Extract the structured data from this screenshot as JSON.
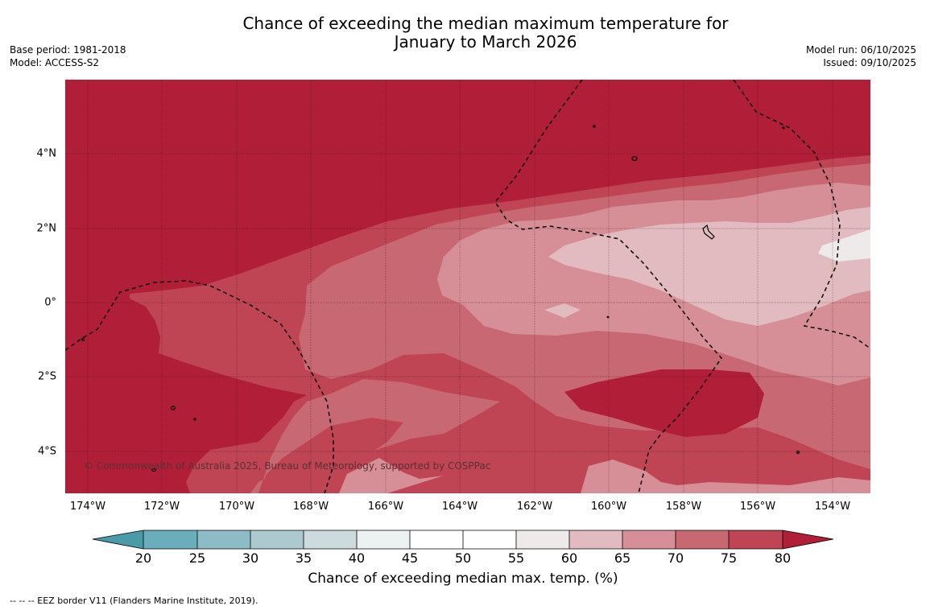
{
  "title": {
    "line1": "Chance of exceeding the median maximum temperature for",
    "line2": "January to March 2026"
  },
  "meta_left": {
    "base_period": "Base period: 1981-2018",
    "model": "Model: ACCESS-S2"
  },
  "meta_right": {
    "model_run": "Model run: 06/10/2025",
    "issued": "Issued: 09/10/2025"
  },
  "map": {
    "copyright": "© Commonwealth of Australia 2025, Bureau of Meteorology, supported by COSPPac",
    "lat_labels": [
      "4°N",
      "2°N",
      "0°",
      "2°S",
      "4°S"
    ],
    "lon_labels": [
      "174°W",
      "172°W",
      "170°W",
      "168°W",
      "166°W",
      "164°W",
      "162°W",
      "160°W",
      "158°W",
      "156°W",
      "154°W"
    ],
    "lat_range": [
      -5.1,
      6.0
    ],
    "lon_range": [
      -174.6,
      -153.0
    ],
    "eez_border": "dashed black"
  },
  "colorbar": {
    "ticks": [
      "20",
      "25",
      "30",
      "35",
      "40",
      "45",
      "50",
      "55",
      "60",
      "65",
      "70",
      "75",
      "80"
    ],
    "label": "Chance of exceeding median max. temp. (%)",
    "colors": {
      "below20": "#4a9aa8",
      "c20_25": "#6aaebb",
      "c25_30": "#8dbcc6",
      "c30_35": "#abc9cf",
      "c35_40": "#ccdbdd",
      "c40_45": "#ecf2f2",
      "c45_50": "#ffffff",
      "c50_55": "#ffffff",
      "c55_60": "#eeeaea",
      "c60_65": "#e1bbc0",
      "c65_70": "#d68e97",
      "c70_75": "#c86872",
      "c75_80": "#bf4454",
      "above80": "#b01e38"
    }
  },
  "footnote": "--  --  -- EEZ border V11 (Flanders Marine Institute, 2019)."
}
